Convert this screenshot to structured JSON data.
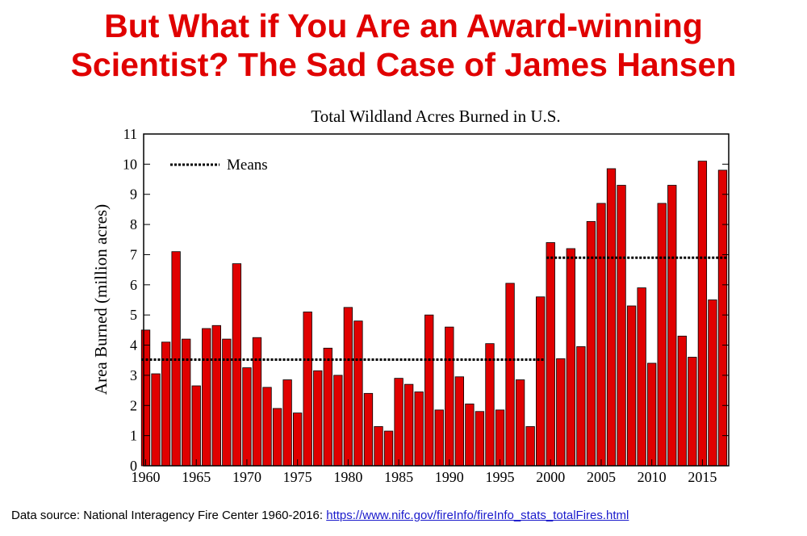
{
  "slide_title_line1": "But What if You Are an Award-winning",
  "slide_title_line2": "Scientist? The Sad Case of James Hansen",
  "footer": {
    "text": "Data source: National Interagency Fire Center 1960-2016:",
    "link": "https://www.nifc.gov/fireInfo/fireInfo_stats_totalFires.html"
  },
  "chart_data": {
    "type": "bar",
    "title": "Total Wildland Acres Burned in U.S.",
    "xlabel": "",
    "ylabel": "Area Burned (million acres)",
    "ylim": [
      0,
      11
    ],
    "xlim": [
      1959.8,
      2017.6
    ],
    "yticks": [
      "0",
      "1",
      "2",
      "3",
      "4",
      "5",
      "6",
      "7",
      "8",
      "9",
      "10",
      "11"
    ],
    "xticks": [
      "1960",
      "1965",
      "1970",
      "1975",
      "1980",
      "1985",
      "1990",
      "1995",
      "2000",
      "2005",
      "2010",
      "2015"
    ],
    "legend": {
      "label": "Means",
      "placement": "top-left"
    },
    "bar_color": "#e00000",
    "x": [
      1960,
      1961,
      1962,
      1963,
      1964,
      1965,
      1966,
      1967,
      1968,
      1969,
      1970,
      1971,
      1972,
      1973,
      1974,
      1975,
      1976,
      1977,
      1978,
      1979,
      1980,
      1981,
      1982,
      1983,
      1984,
      1985,
      1986,
      1987,
      1988,
      1989,
      1990,
      1991,
      1992,
      1993,
      1994,
      1995,
      1996,
      1997,
      1998,
      1999,
      2000,
      2001,
      2002,
      2003,
      2004,
      2005,
      2006,
      2007,
      2008,
      2009,
      2010,
      2011,
      2012,
      2013,
      2014,
      2015,
      2016,
      2017
    ],
    "values": [
      4.5,
      3.05,
      4.1,
      7.1,
      4.2,
      2.65,
      4.55,
      4.65,
      4.2,
      6.7,
      3.25,
      4.25,
      2.6,
      1.9,
      2.85,
      1.75,
      5.1,
      3.15,
      3.9,
      3.0,
      5.25,
      4.8,
      2.4,
      1.3,
      1.15,
      2.9,
      2.7,
      2.45,
      5.0,
      1.85,
      4.6,
      2.95,
      2.05,
      1.8,
      4.05,
      1.85,
      6.05,
      2.85,
      1.3,
      5.6,
      7.4,
      3.55,
      7.2,
      3.95,
      8.1,
      8.7,
      9.85,
      9.3,
      5.3,
      5.9,
      3.4,
      8.7,
      9.3,
      4.3,
      3.6,
      10.1,
      5.5,
      9.8
    ],
    "means": [
      {
        "from": 1960,
        "to": 1999,
        "value": 3.52
      },
      {
        "from": 2000,
        "to": 2017,
        "value": 6.9
      }
    ]
  }
}
